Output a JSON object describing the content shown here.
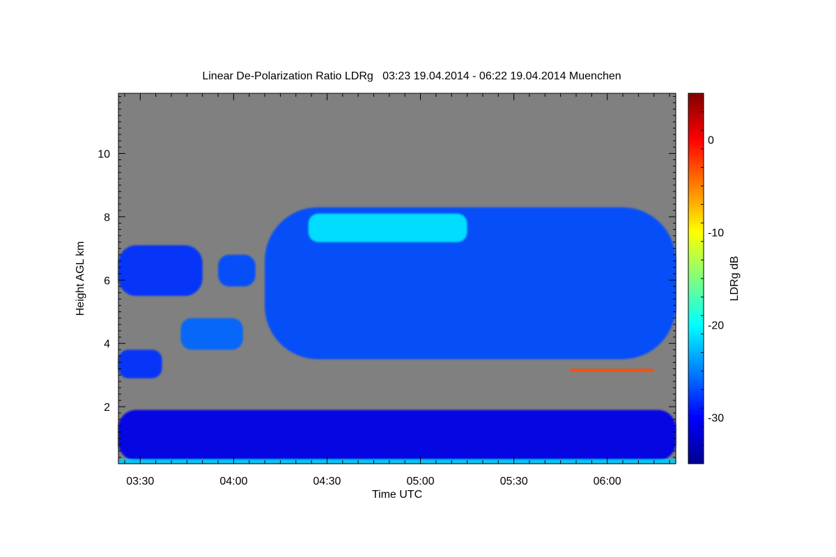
{
  "chart_data": {
    "type": "heatmap",
    "title": "Linear De-Polarization Ratio LDRg   03:23 19.04.2014 - 06:22 19.04.2014 Muenchen",
    "xlabel": "Time UTC",
    "ylabel": "Height AGL km",
    "x_unit": "UTC time",
    "y_unit": "km",
    "xlim": [
      "03:23",
      "06:22"
    ],
    "ylim": [
      0.2,
      11.9
    ],
    "x_ticks": [
      "03:30",
      "04:00",
      "04:30",
      "05:00",
      "05:30",
      "06:00"
    ],
    "y_ticks": [
      2,
      4,
      6,
      8,
      10
    ],
    "colorbar": {
      "label": "LDRg dB",
      "range": [
        -35,
        5
      ],
      "ticks": [
        0,
        -10,
        -20,
        -30
      ],
      "colormap": "jet"
    },
    "background_color": "#808080",
    "features": [
      {
        "name": "Main cirrus cloud layer",
        "time": [
          "04:10",
          "06:22"
        ],
        "height_km": [
          3.5,
          8.3
        ],
        "ldr_db": -27
      },
      {
        "name": "Upper cloud edge, enhanced depolarization",
        "time": [
          "04:24",
          "05:15"
        ],
        "height_km": [
          7.2,
          8.1
        ],
        "ldr_db": -21
      },
      {
        "name": "Cloud patch",
        "time": [
          "03:23",
          "03:50"
        ],
        "height_km": [
          5.5,
          7.1
        ],
        "ldr_db": -28
      },
      {
        "name": "Cloud patch",
        "time": [
          "03:55",
          "04:07"
        ],
        "height_km": [
          5.8,
          6.8
        ],
        "ldr_db": -27
      },
      {
        "name": "Cloud fragments",
        "time": [
          "03:43",
          "04:03"
        ],
        "height_km": [
          3.8,
          4.8
        ],
        "ldr_db": -26
      },
      {
        "name": "Low cloud",
        "time": [
          "03:23",
          "03:37"
        ],
        "height_km": [
          2.9,
          3.8
        ],
        "ldr_db": -28
      },
      {
        "name": "Boundary layer aerosol",
        "time": [
          "03:23",
          "06:22"
        ],
        "height_km": [
          0.3,
          1.9
        ],
        "ldr_db": -31
      },
      {
        "name": "Near-surface layer",
        "time": [
          "03:23",
          "06:22"
        ],
        "height_km": [
          0.2,
          0.35
        ],
        "ldr_db": -22
      },
      {
        "name": "Isolated high-depolarization points",
        "time": [
          "05:48",
          "06:15"
        ],
        "height_km": [
          3.1,
          3.2
        ],
        "ldr_db": -3
      }
    ]
  }
}
